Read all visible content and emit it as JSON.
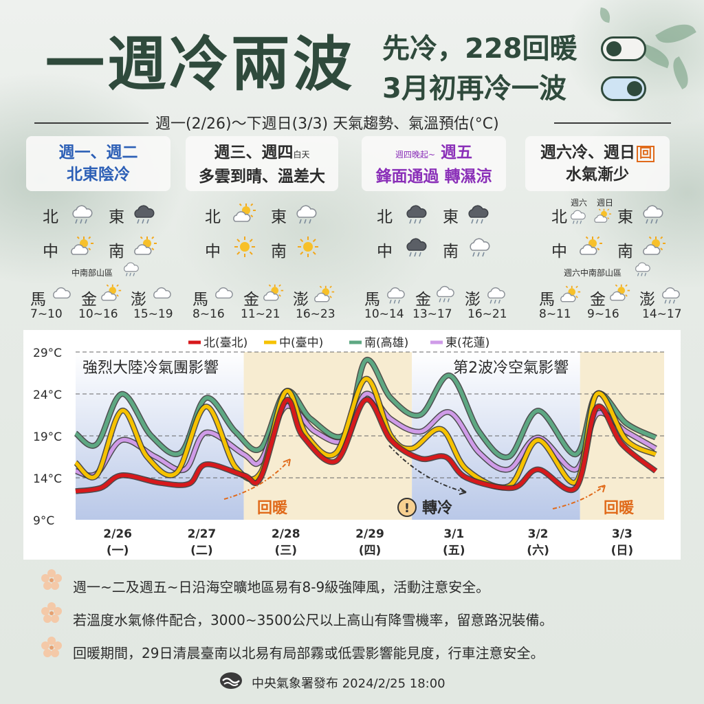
{
  "title": "一週冷兩波",
  "subtitle1": "先冷，228回暖",
  "subtitle2": "3月初再冷一波",
  "period": "週一(2/26)～下週日(3/3) 天氣趨勢、氣溫預估(°C)",
  "panels": [
    {
      "line1a": "週一、週二",
      "line2": "北東陰冷"
    },
    {
      "line1a": "週三、週四",
      "line1small": "白天",
      "line2": "多雲到晴、溫差大"
    },
    {
      "line1small": "週四晚起~",
      "line1a": "週五",
      "line2": "鋒面通過 轉濕涼"
    },
    {
      "line1a": "週六冷、週日",
      "line1b": "回",
      "line2": "水氣漸少"
    }
  ],
  "regions": {
    "north": "北",
    "east": "東",
    "central": "中",
    "south": "南",
    "matsu": "馬",
    "kinmen": "金",
    "penghu": "澎"
  },
  "notes_small": {
    "g1_mountain": "中南部山區",
    "g4_sat": "週六",
    "g4_sun": "週日",
    "g4_mountain": "週六中南部山區"
  },
  "ranges": {
    "g1": [
      "7~10",
      "10~16",
      "15~19"
    ],
    "g2": [
      "8~16",
      "11~21",
      "16~23"
    ],
    "g3": [
      "10~14",
      "13~17",
      "16~21"
    ],
    "g4": [
      "8~11",
      "9~16",
      "14~17"
    ]
  },
  "icons": {
    "g1": {
      "north": "cloud-rain-icon",
      "east": "dark-cloud-rain-icon",
      "central": "sun-cloud-icon",
      "south": "sun-cloud-icon",
      "mountain": "cloud-rain-icon",
      "matsu": "cloud-icon",
      "kinmen": "sun-cloud-icon",
      "penghu": "cloud-icon"
    },
    "g2": {
      "north": "sun-cloud-icon",
      "east": "cloud-rain-icon",
      "central": "sun-icon",
      "south": "sun-icon",
      "matsu": "cloud-icon",
      "kinmen": "sun-cloud-icon",
      "penghu": "sun-cloud-icon"
    },
    "g3": {
      "north": "dark-cloud-rain-icon",
      "east": "dark-cloud-rain-icon",
      "central": "dark-cloud-rain-icon",
      "south": "cloud-rain-icon",
      "matsu": "cloud-rain-icon",
      "kinmen": "cloud-rain-icon",
      "penghu": "cloud-rain-icon"
    },
    "g4": {
      "north_sat": "cloud-rain-icon",
      "north_sun": "sun-cloud-icon",
      "east": "cloud-rain-icon",
      "central": "sun-cloud-icon",
      "south": "sun-cloud-icon",
      "mountain": "cloud-rain-icon",
      "matsu": "sun-cloud-icon",
      "kinmen": "sun-cloud-icon",
      "penghu": "cloud-rain-icon"
    }
  },
  "colors": {
    "north": "#d7191c",
    "central": "#f6c200",
    "south": "#5ea883",
    "east": "#cf9be8",
    "cold_band": "#b9c8e8",
    "warm_band": "#f7ecd1",
    "accent_orange": "#e06a1a",
    "title_green": "#2f4a3c"
  },
  "chart_data": {
    "type": "line",
    "ylabel": "",
    "xlabel": "",
    "yticks": [
      "29°C",
      "24°C",
      "19°C",
      "14°C",
      "9°C"
    ],
    "ylim": [
      9,
      29
    ],
    "xlim": [
      0,
      7
    ],
    "categories": [
      {
        "date": "2/26",
        "dow": "(一)"
      },
      {
        "date": "2/27",
        "dow": "(二)"
      },
      {
        "date": "2/28",
        "dow": "(三)"
      },
      {
        "date": "2/29",
        "dow": "(四)"
      },
      {
        "date": "3/1",
        "dow": "(五)"
      },
      {
        "date": "3/2",
        "dow": "(六)"
      },
      {
        "date": "3/3",
        "dow": "(日)"
      }
    ],
    "legend_position": "top",
    "grid": "dashed horizontal",
    "bands": [
      {
        "from": 0,
        "to": 2,
        "kind": "cold",
        "label": "強烈大陸冷氣團影響"
      },
      {
        "from": 2,
        "to": 4,
        "kind": "warm",
        "label": ""
      },
      {
        "from": 4,
        "to": 6,
        "kind": "cold",
        "label": "第2波冷空氣影響"
      },
      {
        "from": 6,
        "to": 7,
        "kind": "warm",
        "label": ""
      }
    ],
    "annotations": {
      "warm1": "回暖",
      "cold": "轉冷",
      "warm2": "回暖"
    },
    "series": [
      {
        "name": "北(臺北)",
        "color": "#d7191c",
        "points": [
          [
            0,
            12.4
          ],
          [
            0.3,
            12.8
          ],
          [
            0.55,
            14.3
          ],
          [
            1,
            13.4
          ],
          [
            1.35,
            13.3
          ],
          [
            1.55,
            15.6
          ],
          [
            2,
            14.3
          ],
          [
            2.2,
            14.0
          ],
          [
            2.5,
            23.2
          ],
          [
            2.7,
            19.0
          ],
          [
            3.1,
            16.0
          ],
          [
            3.45,
            23.3
          ],
          [
            3.75,
            18.5
          ],
          [
            4.1,
            16.3
          ],
          [
            4.4,
            16.5
          ],
          [
            4.65,
            14.0
          ],
          [
            5.2,
            12.8
          ],
          [
            5.5,
            15.0
          ],
          [
            5.95,
            12.8
          ],
          [
            6.2,
            22.4
          ],
          [
            6.5,
            18.0
          ],
          [
            6.9,
            14.8
          ]
        ]
      },
      {
        "name": "中(臺中)",
        "color": "#f6c200",
        "points": [
          [
            0,
            15.8
          ],
          [
            0.25,
            14.3
          ],
          [
            0.55,
            22.0
          ],
          [
            0.85,
            16.5
          ],
          [
            1.2,
            14.6
          ],
          [
            1.55,
            22.5
          ],
          [
            1.9,
            15.3
          ],
          [
            2.2,
            14.6
          ],
          [
            2.5,
            24.3
          ],
          [
            2.75,
            19.0
          ],
          [
            3.1,
            17.0
          ],
          [
            3.45,
            25.8
          ],
          [
            3.75,
            19.0
          ],
          [
            4.0,
            17.5
          ],
          [
            4.35,
            19.8
          ],
          [
            4.65,
            15.0
          ],
          [
            5.15,
            13.0
          ],
          [
            5.5,
            18.5
          ],
          [
            5.95,
            13.5
          ],
          [
            6.2,
            24.0
          ],
          [
            6.55,
            18.5
          ],
          [
            6.9,
            16.8
          ]
        ]
      },
      {
        "name": "南(高雄)",
        "color": "#5ea883",
        "points": [
          [
            0,
            19.3
          ],
          [
            0.25,
            18.0
          ],
          [
            0.55,
            24.0
          ],
          [
            0.9,
            19.0
          ],
          [
            1.25,
            17.0
          ],
          [
            1.55,
            23.5
          ],
          [
            1.9,
            19.5
          ],
          [
            2.2,
            17.5
          ],
          [
            2.5,
            24.3
          ],
          [
            2.8,
            21.0
          ],
          [
            3.2,
            19.2
          ],
          [
            3.45,
            28.0
          ],
          [
            3.75,
            23.5
          ],
          [
            4.1,
            21.5
          ],
          [
            4.45,
            26.2
          ],
          [
            4.8,
            19.5
          ],
          [
            5.15,
            16.5
          ],
          [
            5.5,
            22.0
          ],
          [
            5.95,
            16.8
          ],
          [
            6.2,
            24.0
          ],
          [
            6.55,
            20.5
          ],
          [
            6.9,
            18.8
          ]
        ]
      },
      {
        "name": "東(花蓮)",
        "color": "#cf9be8",
        "points": [
          [
            0,
            14.8
          ],
          [
            0.25,
            14.5
          ],
          [
            0.55,
            18.5
          ],
          [
            0.95,
            16.5
          ],
          [
            1.3,
            15.0
          ],
          [
            1.55,
            19.4
          ],
          [
            2,
            16.8
          ],
          [
            2.2,
            16.0
          ],
          [
            2.5,
            22.5
          ],
          [
            2.85,
            19.5
          ],
          [
            3.2,
            18.5
          ],
          [
            3.45,
            24.0
          ],
          [
            3.75,
            21.0
          ],
          [
            4.1,
            19.5
          ],
          [
            4.45,
            21.8
          ],
          [
            4.8,
            17.0
          ],
          [
            5.15,
            15.0
          ],
          [
            5.5,
            18.8
          ],
          [
            5.95,
            15.0
          ],
          [
            6.2,
            21.6
          ],
          [
            6.55,
            19.5
          ],
          [
            6.9,
            17.5
          ]
        ]
      }
    ]
  },
  "notes": [
    "週一~二及週五~日沿海空曠地區易有8-9級強陣風，活動注意安全。",
    "若溫度水氣條件配合，3000~3500公尺以上高山有降雪機率，留意路況裝備。",
    "回暖期間，29日清晨臺南以北易有局部霧或低雲影響能見度，行車注意安全。"
  ],
  "footer": "中央氣象署發布 2024/2/25 18:00"
}
